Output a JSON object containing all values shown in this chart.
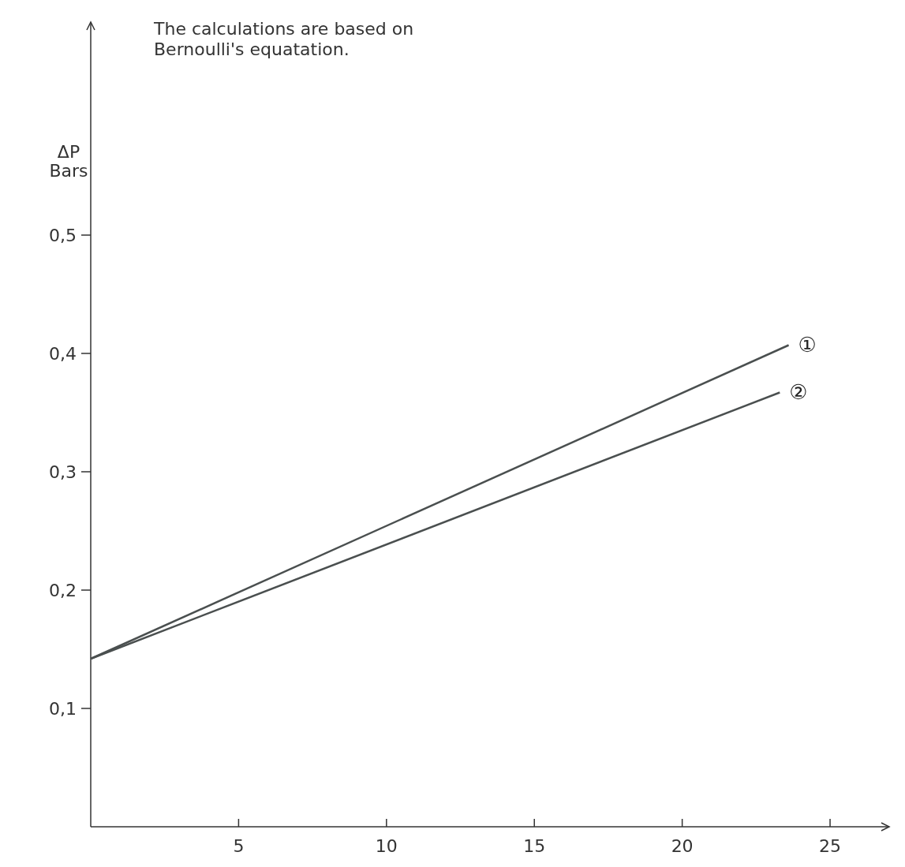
{
  "chart_data": {
    "type": "line",
    "title": "The calculations are based on Bernoulli's equatation.",
    "ylabel": "ΔP Bars",
    "xlim": [
      0,
      27
    ],
    "xticks": [
      5,
      10,
      15,
      20,
      25
    ],
    "ylim": [
      0,
      0.68
    ],
    "yticks": [
      {
        "value": 0.1,
        "label": "0,1"
      },
      {
        "value": 0.2,
        "label": "0,2"
      },
      {
        "value": 0.3,
        "label": "0,3"
      },
      {
        "value": 0.4,
        "label": "0,4"
      },
      {
        "value": 0.5,
        "label": "0,5"
      }
    ],
    "grid": false,
    "marker": "none",
    "line_style": "solid",
    "series": [
      {
        "name": "①",
        "color": "#4a4f4f",
        "x": [
          0,
          23.6
        ],
        "values": [
          0.142,
          0.407
        ]
      },
      {
        "name": "②",
        "color": "#4a4f4f",
        "x": [
          0,
          23.3
        ],
        "values": [
          0.142,
          0.367
        ]
      }
    ]
  }
}
